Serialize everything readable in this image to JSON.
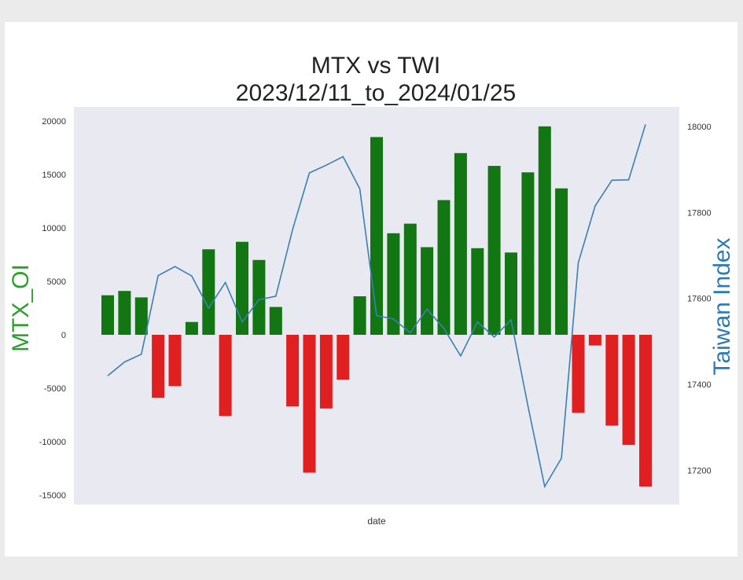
{
  "chart_data": {
    "type": "bar",
    "title": "MTX vs TWI",
    "subtitle": "2023/12/11_to_2024/01/25",
    "xlabel": "date",
    "ylabel_left": "MTX_OI",
    "ylabel_right": "Taiwan Index",
    "ylim_left": [
      -16000,
      21000
    ],
    "ylim_right": [
      17130,
      18050
    ],
    "yticks_left": [
      -15000,
      -10000,
      -5000,
      0,
      5000,
      10000,
      15000,
      20000
    ],
    "yticks_right": [
      17200,
      17400,
      17600,
      17800,
      18000
    ],
    "grid": false,
    "colors": {
      "positive": "#127612",
      "negative": "#e02020",
      "line": "#3a7fb5",
      "ylabel_left": "#2ca02c",
      "ylabel_right": "#2a7ab8",
      "plot_bg": "#e9e9f1"
    },
    "series": [
      {
        "name": "MTX_OI",
        "type": "bar",
        "values": [
          3700,
          4100,
          3500,
          -5900,
          -4800,
          1200,
          8000,
          -7600,
          8700,
          7000,
          2600,
          -6700,
          -12900,
          -6900,
          -4200,
          3600,
          18500,
          9500,
          10400,
          8200,
          12600,
          17000,
          8100,
          15800,
          7700,
          15200,
          19500,
          13700,
          -7300,
          -1000,
          -8500,
          -10300,
          -14200
        ]
      },
      {
        "name": "Taiwan Index",
        "type": "line",
        "values": [
          17420,
          17452,
          17470,
          17653,
          17674,
          17652,
          17577,
          17637,
          17545,
          17597,
          17605,
          17760,
          17892,
          17910,
          17930,
          17855,
          17560,
          17552,
          17520,
          17575,
          17530,
          17466,
          17545,
          17510,
          17550,
          17350,
          17162,
          17228,
          17683,
          17815,
          17875,
          17876,
          18005
        ]
      }
    ]
  }
}
